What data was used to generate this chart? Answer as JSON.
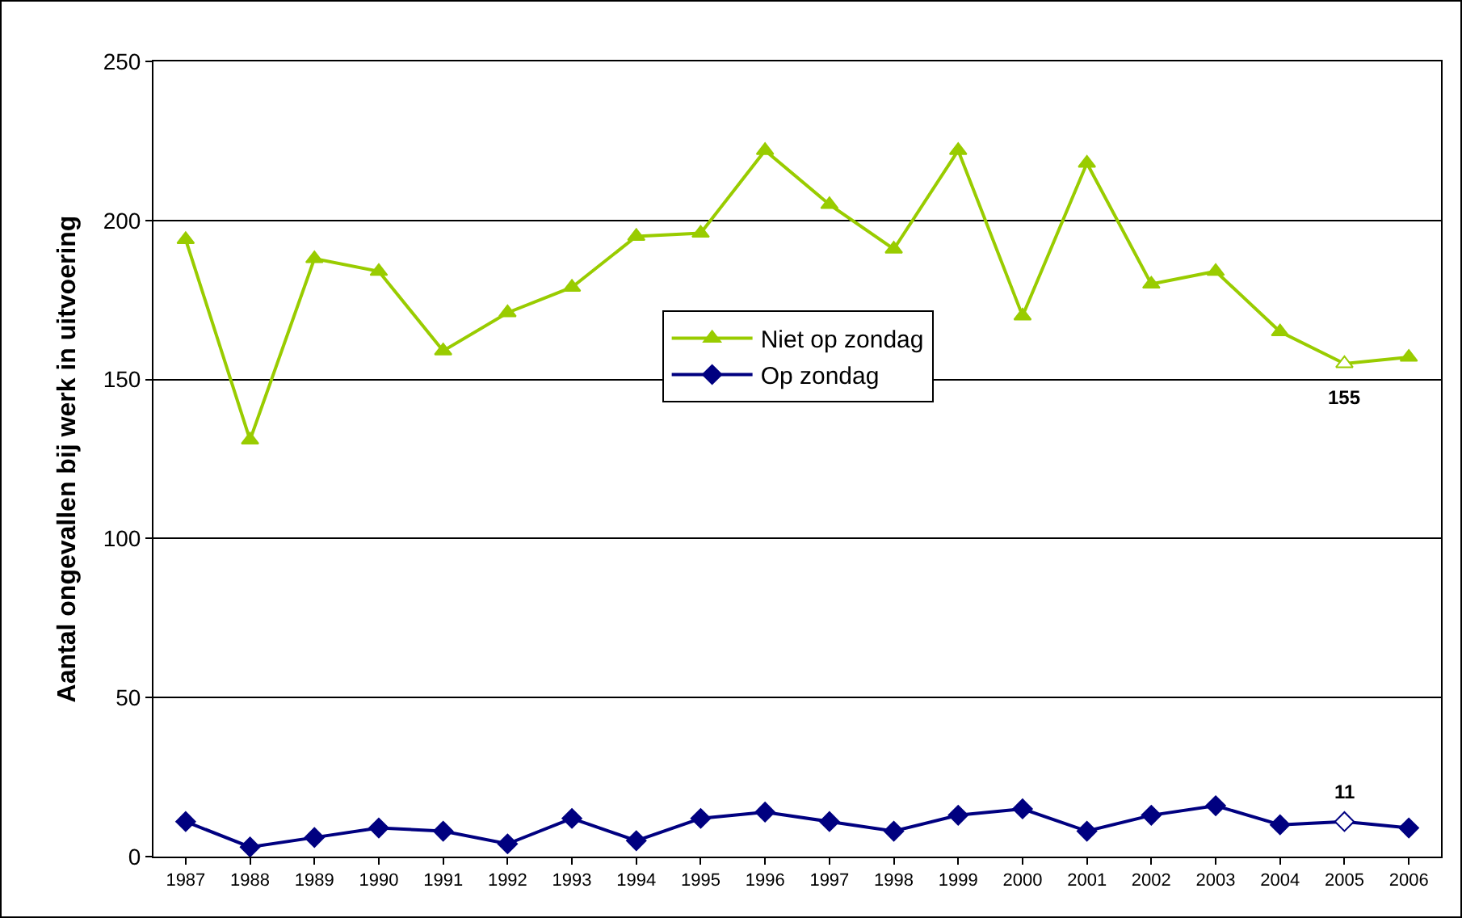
{
  "chart_data": {
    "type": "line",
    "ylabel": "Aantal ongevallen bij werk in uitvoering",
    "categories": [
      "1987",
      "1988",
      "1989",
      "1990",
      "1991",
      "1992",
      "1993",
      "1994",
      "1995",
      "1996",
      "1997",
      "1998",
      "1999",
      "2000",
      "2001",
      "2002",
      "2003",
      "2004",
      "2005",
      "2006"
    ],
    "series": [
      {
        "name": "Niet op zondag",
        "color": "#99cc00",
        "marker": "triangle",
        "values": [
          194,
          131,
          188,
          184,
          159,
          171,
          179,
          195,
          196,
          222,
          205,
          191,
          222,
          170,
          218,
          180,
          184,
          165,
          155,
          157
        ],
        "value_labels": [
          null,
          null,
          null,
          null,
          null,
          null,
          null,
          null,
          null,
          null,
          null,
          null,
          null,
          null,
          null,
          null,
          null,
          null,
          "155",
          null
        ]
      },
      {
        "name": "Op zondag",
        "color": "#000080",
        "marker": "diamond",
        "values": [
          11,
          3,
          6,
          9,
          8,
          4,
          12,
          5,
          12,
          14,
          11,
          8,
          13,
          15,
          8,
          13,
          16,
          10,
          11,
          9
        ],
        "value_labels": [
          null,
          null,
          null,
          null,
          null,
          null,
          null,
          null,
          null,
          null,
          null,
          null,
          null,
          null,
          null,
          null,
          null,
          null,
          "11",
          null
        ]
      }
    ],
    "ylim": [
      0,
      250
    ],
    "yticks": [
      0,
      50,
      100,
      150,
      200,
      250
    ],
    "grid": "y",
    "legend": "center",
    "line_style": "solid"
  }
}
